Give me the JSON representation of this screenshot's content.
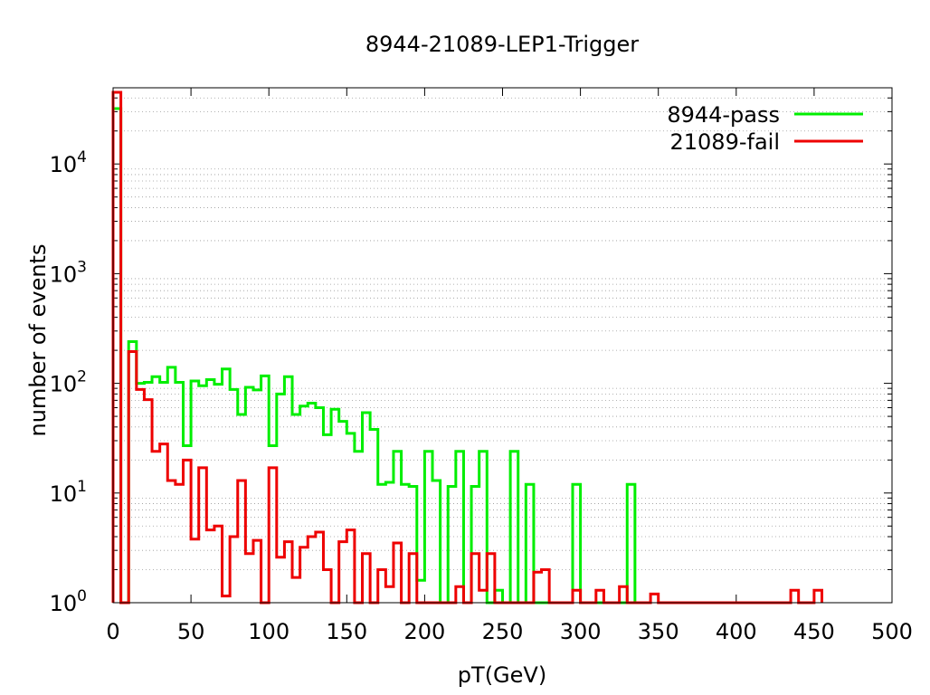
{
  "chart_data": {
    "type": "histogram",
    "title": "8944-21089-LEP1-Trigger",
    "xlabel": "pT(GeV)",
    "ylabel": "number of events",
    "xlim": [
      0,
      500
    ],
    "ylim": [
      1,
      50000
    ],
    "yscale": "log",
    "grid": "horizontal dotted minor lines",
    "legend_position": "top-right",
    "bin_width": 5,
    "x_ticks": [
      {
        "value": 0,
        "label": "0"
      },
      {
        "value": 50,
        "label": "50"
      },
      {
        "value": 100,
        "label": "100"
      },
      {
        "value": 150,
        "label": "150"
      },
      {
        "value": 200,
        "label": "200"
      },
      {
        "value": 250,
        "label": "250"
      },
      {
        "value": 300,
        "label": "300"
      },
      {
        "value": 350,
        "label": "350"
      },
      {
        "value": 400,
        "label": "400"
      },
      {
        "value": 450,
        "label": "450"
      },
      {
        "value": 500,
        "label": "500"
      }
    ],
    "y_ticks": [
      {
        "value": 1,
        "base": "10",
        "exp": "0"
      },
      {
        "value": 10,
        "base": "10",
        "exp": "1"
      },
      {
        "value": 100,
        "base": "10",
        "exp": "2"
      },
      {
        "value": 1000,
        "base": "10",
        "exp": "3"
      },
      {
        "value": 10000,
        "base": "10",
        "exp": "4"
      }
    ],
    "series": [
      {
        "name": "8944-pass",
        "color": "#00ee00",
        "bins": [
          [
            0,
            32000
          ],
          [
            5,
            1
          ],
          [
            10,
            240
          ],
          [
            15,
            100
          ],
          [
            20,
            102
          ],
          [
            25,
            115
          ],
          [
            30,
            102
          ],
          [
            35,
            140
          ],
          [
            40,
            102
          ],
          [
            45,
            27
          ],
          [
            50,
            105
          ],
          [
            55,
            95
          ],
          [
            60,
            108
          ],
          [
            65,
            98
          ],
          [
            70,
            135
          ],
          [
            75,
            88
          ],
          [
            80,
            52
          ],
          [
            85,
            92
          ],
          [
            90,
            87
          ],
          [
            95,
            117
          ],
          [
            100,
            27
          ],
          [
            105,
            80
          ],
          [
            110,
            115
          ],
          [
            115,
            52
          ],
          [
            120,
            62
          ],
          [
            125,
            66
          ],
          [
            130,
            60
          ],
          [
            135,
            34
          ],
          [
            140,
            58
          ],
          [
            145,
            45
          ],
          [
            150,
            35
          ],
          [
            155,
            24
          ],
          [
            160,
            54
          ],
          [
            165,
            38
          ],
          [
            170,
            12
          ],
          [
            175,
            12.5
          ],
          [
            180,
            24
          ],
          [
            185,
            12
          ],
          [
            190,
            11.5
          ],
          [
            195,
            1.6
          ],
          [
            200,
            24
          ],
          [
            205,
            13
          ],
          [
            210,
            1
          ],
          [
            215,
            11.5
          ],
          [
            220,
            24
          ],
          [
            225,
            1
          ],
          [
            230,
            11.5
          ],
          [
            235,
            24
          ],
          [
            240,
            1
          ],
          [
            245,
            1.3
          ],
          [
            250,
            1
          ],
          [
            255,
            24
          ],
          [
            260,
            1
          ],
          [
            265,
            12
          ],
          [
            270,
            1
          ],
          [
            275,
            1
          ],
          [
            280,
            1
          ],
          [
            285,
            1
          ],
          [
            290,
            1
          ],
          [
            295,
            12
          ],
          [
            300,
            1
          ],
          [
            305,
            1
          ],
          [
            310,
            1
          ],
          [
            315,
            1
          ],
          [
            320,
            1
          ],
          [
            325,
            1
          ],
          [
            330,
            12
          ]
        ]
      },
      {
        "name": "21089-fail",
        "color": "#ee0000",
        "bins": [
          [
            0,
            45000
          ],
          [
            5,
            1
          ],
          [
            10,
            195
          ],
          [
            15,
            88
          ],
          [
            20,
            71
          ],
          [
            25,
            24
          ],
          [
            30,
            28
          ],
          [
            35,
            13
          ],
          [
            40,
            12
          ],
          [
            45,
            20
          ],
          [
            50,
            3.8
          ],
          [
            55,
            17
          ],
          [
            60,
            4.6
          ],
          [
            65,
            5
          ],
          [
            70,
            1.15
          ],
          [
            75,
            4
          ],
          [
            80,
            13
          ],
          [
            85,
            2.8
          ],
          [
            90,
            3.7
          ],
          [
            95,
            1
          ],
          [
            100,
            17
          ],
          [
            105,
            2.6
          ],
          [
            110,
            3.6
          ],
          [
            115,
            1.7
          ],
          [
            120,
            3.2
          ],
          [
            125,
            4
          ],
          [
            130,
            4.4
          ],
          [
            135,
            2
          ],
          [
            140,
            1
          ],
          [
            145,
            3.6
          ],
          [
            150,
            4.6
          ],
          [
            155,
            1
          ],
          [
            160,
            2.8
          ],
          [
            165,
            1
          ],
          [
            170,
            2
          ],
          [
            175,
            1.4
          ],
          [
            180,
            3.5
          ],
          [
            185,
            1
          ],
          [
            190,
            2.8
          ],
          [
            195,
            1
          ],
          [
            200,
            1
          ],
          [
            205,
            1
          ],
          [
            210,
            1
          ],
          [
            215,
            1
          ],
          [
            220,
            1.4
          ],
          [
            225,
            1
          ],
          [
            230,
            2.8
          ],
          [
            235,
            1.3
          ],
          [
            240,
            2.8
          ],
          [
            245,
            1
          ],
          [
            250,
            1
          ],
          [
            255,
            1
          ],
          [
            260,
            1
          ],
          [
            265,
            1
          ],
          [
            270,
            1.9
          ],
          [
            275,
            2
          ],
          [
            280,
            1
          ],
          [
            285,
            1
          ],
          [
            290,
            1
          ],
          [
            295,
            1.3
          ],
          [
            300,
            1
          ],
          [
            305,
            1
          ],
          [
            310,
            1.3
          ],
          [
            315,
            1
          ],
          [
            320,
            1
          ],
          [
            325,
            1.4
          ],
          [
            330,
            1
          ],
          [
            335,
            1
          ],
          [
            340,
            1
          ],
          [
            345,
            1.2
          ],
          [
            350,
            1
          ],
          [
            355,
            1
          ],
          [
            360,
            1
          ],
          [
            365,
            1
          ],
          [
            370,
            1
          ],
          [
            375,
            1
          ],
          [
            380,
            1
          ],
          [
            385,
            1
          ],
          [
            390,
            1
          ],
          [
            395,
            1
          ],
          [
            400,
            1
          ],
          [
            405,
            1
          ],
          [
            410,
            1
          ],
          [
            415,
            1
          ],
          [
            420,
            1
          ],
          [
            425,
            1
          ],
          [
            430,
            1
          ],
          [
            435,
            1.3
          ],
          [
            440,
            1
          ],
          [
            445,
            1
          ],
          [
            450,
            1.3
          ]
        ]
      }
    ]
  }
}
